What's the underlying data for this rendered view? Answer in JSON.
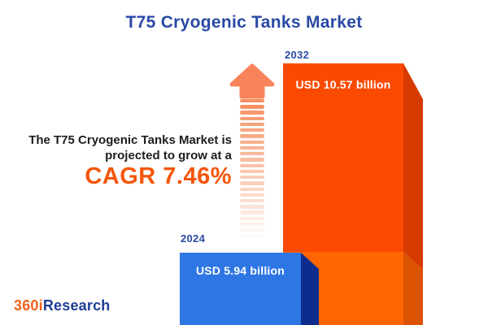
{
  "header": {
    "title": "T75 Cryogenic Tanks Market"
  },
  "description": {
    "line1": "The T75 Cryogenic Tanks Market is",
    "line2": "projected to grow at a",
    "cagr": "CAGR 7.46%"
  },
  "chart_data": {
    "type": "bar",
    "title": "T75 Cryogenic Tanks Market",
    "categories": [
      "2024",
      "2032"
    ],
    "values": [
      5.94,
      10.57
    ],
    "unit": "USD billion",
    "value_labels": [
      "USD 5.94 billion",
      "USD 10.57 billion"
    ],
    "growth_annotation": "CAGR 7.46%",
    "cagr_percent": 7.46,
    "legend_position": "none",
    "grid": false,
    "colors": {
      "bar_2024_face": "#2E76E4",
      "bar_2024_side": "#0D2D8E",
      "bar_2032_face_top": "#FA4A02",
      "bar_2032_side_top": "#D63B00",
      "bar_2032_face_bottom": "#FF6502",
      "bar_2032_side_bottom": "#DC5203",
      "arrow_head": "#F8845B",
      "arrow_stripe": "#F58F5F",
      "accent_orange": "#F4560A",
      "accent_blue": "#2A49A5",
      "value_text": "#FFFFFF"
    }
  },
  "logo": {
    "part1": "360i",
    "part2": "Research"
  }
}
